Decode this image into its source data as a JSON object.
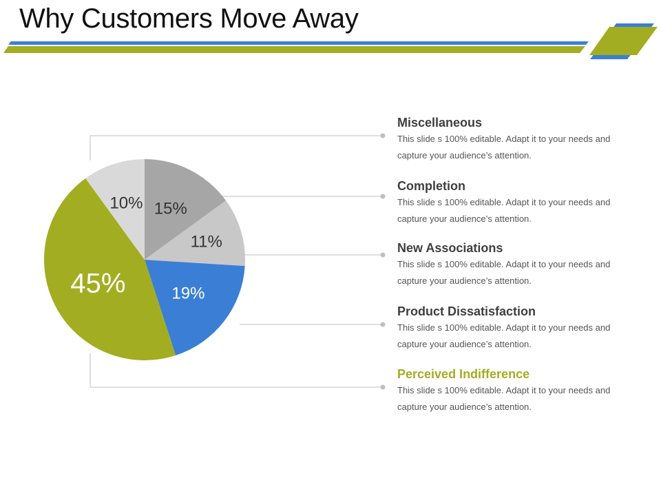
{
  "slide": {
    "title": "Why Customers Move Away"
  },
  "colors": {
    "blue": "#3a7fd5",
    "green": "#a3ad21",
    "dark_gray": "#a6a6a6",
    "light_gray": "#d9d9d9",
    "mid_gray": "#c8c8c8",
    "connector": "#bfbfbf"
  },
  "chart_data": {
    "type": "pie",
    "title": "",
    "start": "12 o'clock",
    "direction": "clockwise",
    "slices": [
      {
        "label": "Miscellaneous",
        "value": 15,
        "display": "15%",
        "color": "#a6a6a6",
        "label_color": "#333333"
      },
      {
        "label": "Completion",
        "value": 11,
        "display": "11%",
        "color": "#c8c8c8",
        "label_color": "#333333"
      },
      {
        "label": "New Associations",
        "value": 19,
        "display": "19%",
        "color": "#3a7fd5",
        "label_color": "#ffffff"
      },
      {
        "label": "Perceived Indifference",
        "value": 45,
        "display": "45%",
        "color": "#a3ad21",
        "label_color": "#ffffff"
      },
      {
        "label": "Product Dissatisfaction",
        "value": 10,
        "display": "10%",
        "color": "#d9d9d9",
        "label_color": "#333333"
      }
    ]
  },
  "legend": [
    {
      "title": "Miscellaneous",
      "desc": "This slide s 100% editable. Adapt it to your needs and capture your audience’s attention.",
      "color": "#3f3f3f"
    },
    {
      "title": "Completion",
      "desc": "This slide s 100% editable. Adapt it to your needs and capture your audience’s attention.",
      "color": "#3f3f3f"
    },
    {
      "title": "New Associations",
      "desc": "This slide s 100% editable. Adapt it to your needs and capture your audience’s attention.",
      "color": "#3f3f3f"
    },
    {
      "title": "Product Dissatisfaction",
      "desc": "This slide s 100% editable. Adapt it to your needs and capture your audience’s attention.",
      "color": "#3f3f3f"
    },
    {
      "title": "Perceived Indifference",
      "desc": "This slide s 100% editable. Adapt it to your needs and capture your audience’s attention.",
      "color": "#a3ad21"
    }
  ]
}
